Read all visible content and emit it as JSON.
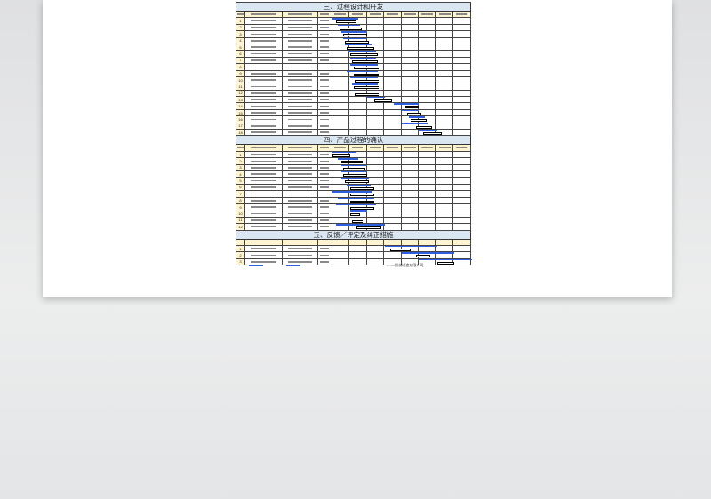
{
  "colors": {
    "plan_bar": "#2d5fe0",
    "section_bg": "#dbe6f3",
    "header_bg": "#fff4d0"
  },
  "sections": [
    {
      "title": "三、过程设计和开发",
      "rows": 18,
      "bars": [
        [
          0,
          1.5,
          0.2,
          1.4
        ],
        [
          0.3,
          1.6,
          0.4,
          1.7
        ],
        [
          0.5,
          2,
          0.6,
          2
        ],
        [
          0.6,
          2,
          0.7,
          2.1
        ],
        [
          0.7,
          2.3,
          0.8,
          2.4
        ],
        [
          0.9,
          2.5,
          1,
          2.6
        ],
        [
          1,
          2.5,
          1.1,
          2.6
        ],
        [
          1,
          2.6,
          1.2,
          2.7
        ],
        [
          0.8,
          2.6,
          1.2,
          2.7
        ],
        [
          1,
          2.6,
          1.3,
          2.7
        ],
        [
          1.1,
          2.6,
          1.2,
          2.7
        ],
        [
          1.2,
          2.6,
          1.3,
          2.7
        ],
        [
          2,
          3,
          2.4,
          3.4
        ],
        [
          3.5,
          5,
          4.2,
          5
        ],
        [
          4,
          5,
          4.3,
          5.1
        ],
        [
          4.4,
          5.3,
          4.5,
          5.4
        ],
        [
          4,
          5.5,
          4.8,
          5.7
        ],
        [
          5,
          6,
          5.2,
          6.3
        ]
      ]
    },
    {
      "title": "四、产品过程的确认",
      "rows": 12,
      "bars": [
        [
          0,
          1.4,
          0,
          1
        ],
        [
          0.3,
          1.5,
          0.5,
          1.8
        ],
        [
          0.5,
          2,
          0.6,
          1.9
        ],
        [
          0.5,
          2,
          0.6,
          2
        ],
        [
          0.5,
          2.1,
          0.7,
          2.1
        ],
        [
          0.8,
          2.2,
          1,
          2.4
        ],
        [
          0,
          2.3,
          1,
          2.4
        ],
        [
          0.3,
          2.4,
          1,
          2.4
        ],
        [
          0.2,
          2.5,
          1,
          2.4
        ],
        [
          1,
          2,
          1,
          1.6
        ],
        [
          1.2,
          2,
          1.1,
          1.8
        ],
        [
          0.2,
          3,
          1.4,
          2.8
        ]
      ]
    },
    {
      "title": "五、反馈／评定及纠正措施",
      "rows": 3,
      "bars": [
        [
          3,
          6,
          3.3,
          4.5
        ],
        [
          4,
          7,
          4.8,
          5.6
        ],
        [
          5,
          8,
          6,
          7
        ]
      ]
    }
  ],
  "date_columns": 8,
  "footer": {
    "company": "××××机械制造有限公司"
  }
}
